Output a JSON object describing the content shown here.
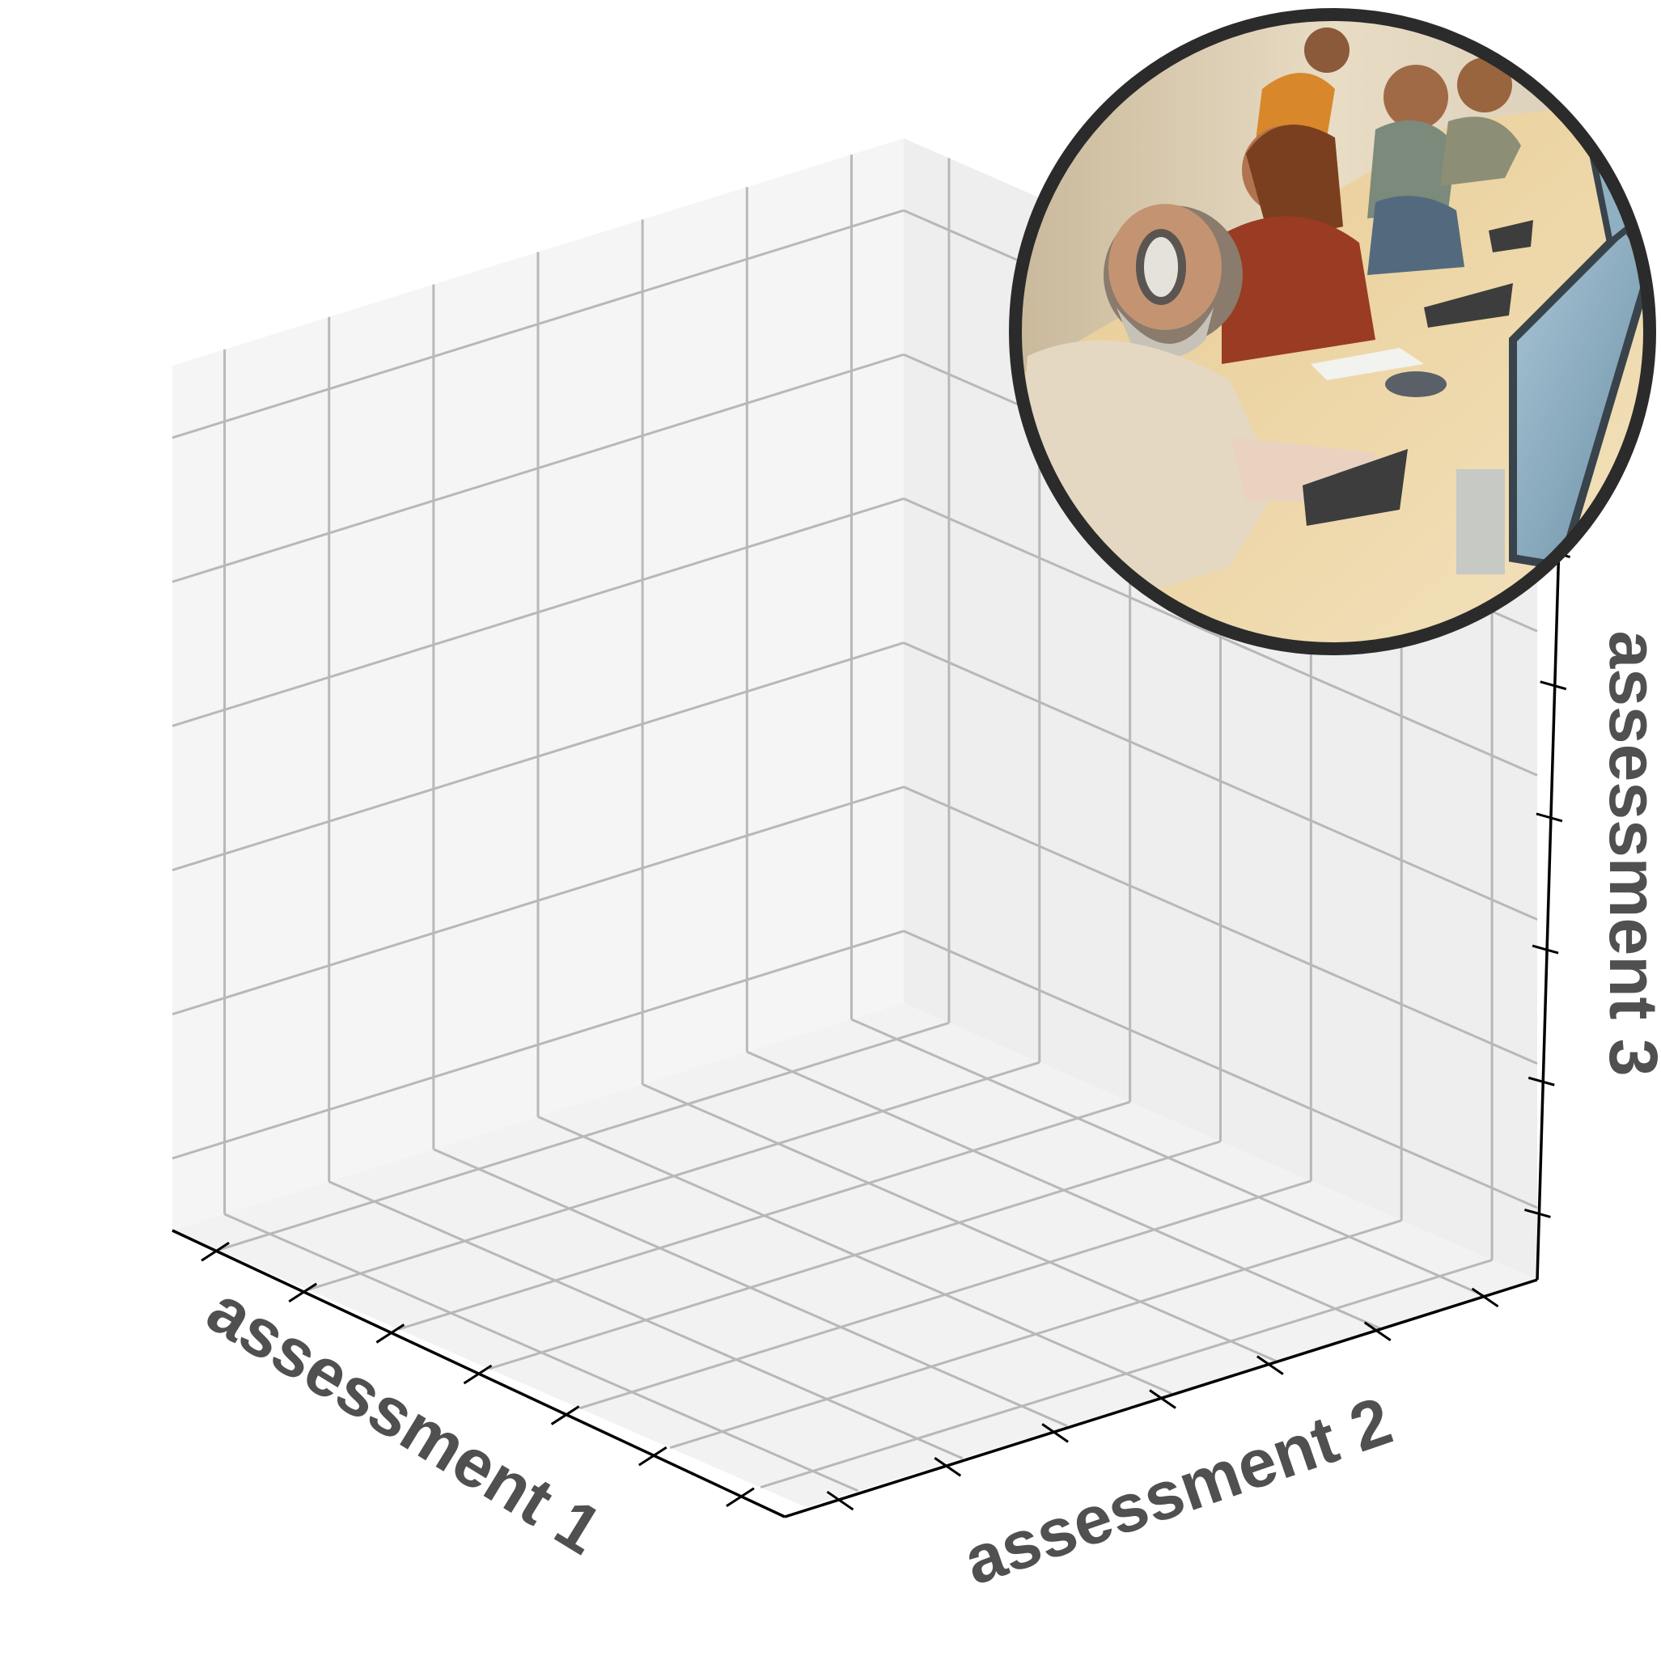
{
  "chart_data": {
    "type": "scatter",
    "projection": "3d",
    "series": [],
    "xlabel": "assessment 1",
    "ylabel": "assessment 2",
    "zlabel": "assessment 3",
    "grid": true,
    "x_tick_count": 7,
    "y_tick_count": 7,
    "z_tick_count": 6,
    "tick_labels_shown": false
  },
  "colors": {
    "pane_left": "#f5f5f5",
    "pane_right": "#eeeeee",
    "pane_floor": "#f2f2f2",
    "grid": "#b8b8b8",
    "axis": "#000000",
    "label": "#505050",
    "inset_frame": "#2b2b2b"
  },
  "inset_image": {
    "icon": "photo-icon",
    "subject": "painting of people typing at computer keyboards in an office"
  }
}
